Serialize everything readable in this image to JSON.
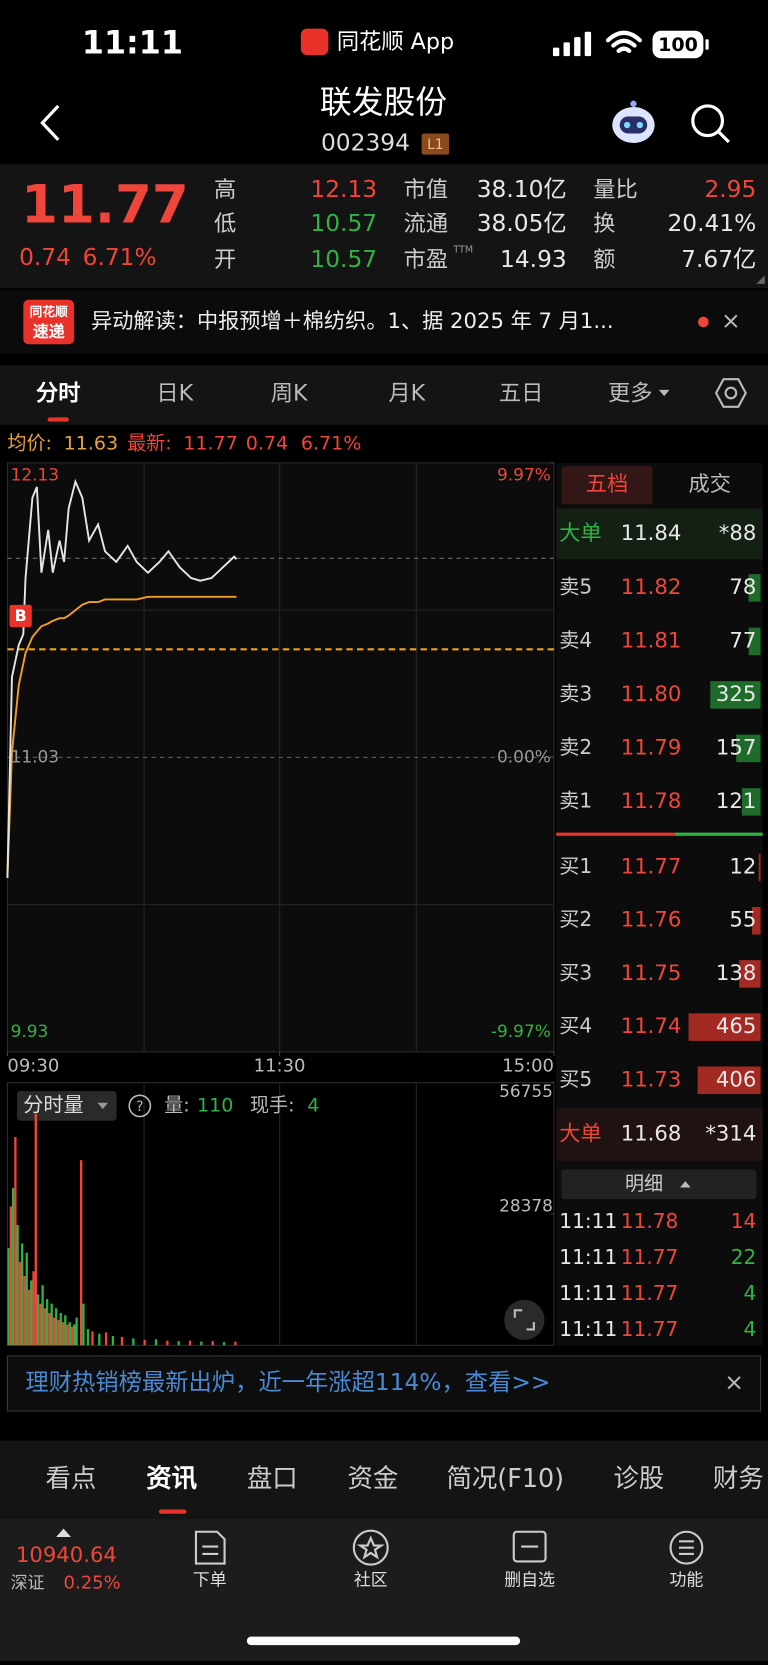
{
  "status_bar": {
    "time": "11:11",
    "app": "同花顺 App",
    "battery": "100"
  },
  "header": {
    "title": "联发股份",
    "code": "002394",
    "badge": "L1"
  },
  "quote": {
    "price": "11.77",
    "change": "0.74",
    "change_pct": "6.71%",
    "stats": [
      {
        "label": "高",
        "value": "12.13",
        "color": "#f0453a"
      },
      {
        "label": "低",
        "value": "10.57",
        "color": "#2fb344"
      },
      {
        "label": "开",
        "value": "10.57",
        "color": "#2fb344"
      },
      {
        "label": "市值",
        "value": "38.10亿",
        "color": "#e8e8e8"
      },
      {
        "label": "流通",
        "value": "38.05亿",
        "color": "#e8e8e8"
      },
      {
        "label": "市盈",
        "sup": "TTM",
        "value": "14.93",
        "color": "#e8e8e8"
      },
      {
        "label": "量比",
        "value": "2.95",
        "color": "#f0453a"
      },
      {
        "label": "换",
        "value": "20.41%",
        "color": "#e8e8e8"
      },
      {
        "label": "额",
        "value": "7.67亿",
        "color": "#e8e8e8"
      }
    ]
  },
  "news": {
    "logo_top": "同花顺",
    "logo_bottom": "速递",
    "text": "异动解读：中报预增＋棉纺织。1、据 2025 年 7 月1...",
    "close": "×"
  },
  "tabs": [
    "分时",
    "日K",
    "周K",
    "月K",
    "五日",
    "更多"
  ],
  "summary": {
    "avg_label": "均价:",
    "avg": "11.63",
    "last_label": "最新:",
    "last": "11.77",
    "change": "0.74",
    "change_pct": "6.71%"
  },
  "marker": "B",
  "chart_data": [
    {
      "type": "line",
      "x": [
        0,
        2,
        5,
        7,
        8,
        11,
        13,
        15,
        18,
        20,
        23,
        25,
        27,
        30,
        33,
        36,
        40,
        43,
        48,
        53,
        57,
        62,
        67,
        71,
        76,
        81,
        85,
        90,
        95,
        100,
        101
      ],
      "series": [
        {
          "color": "#e6e6e6",
          "values": [
            10.58,
            11.33,
            11.45,
            11.49,
            11.7,
            12.0,
            12.04,
            11.72,
            11.88,
            11.72,
            11.84,
            11.76,
            11.96,
            12.06,
            12.0,
            11.84,
            11.9,
            11.8,
            11.76,
            11.82,
            11.76,
            11.72,
            11.76,
            11.8,
            11.74,
            11.7,
            11.69,
            11.7,
            11.74,
            11.78,
            11.77
          ]
        },
        {
          "color": "#f0a020",
          "values": [
            10.58,
            11.05,
            11.3,
            11.38,
            11.42,
            11.48,
            11.5,
            11.52,
            11.53,
            11.54,
            11.55,
            11.55,
            11.56,
            11.58,
            11.6,
            11.61,
            11.61,
            11.62,
            11.62,
            11.62,
            11.62,
            11.63,
            11.63,
            11.63,
            11.63,
            11.63,
            11.63,
            11.63,
            11.63,
            11.63,
            11.63
          ]
        }
      ],
      "xlim": [
        0,
        241
      ],
      "xticks": [
        {
          "value": 0,
          "label": "09:30"
        },
        {
          "value": 120,
          "label": "11:30"
        },
        {
          "value": 241,
          "label": "15:00"
        }
      ],
      "ylim": [
        9.93,
        12.13
      ],
      "yticks": [
        12.13,
        11.03,
        9.93
      ],
      "y2lim": [
        -9.97,
        9.97
      ],
      "y2ticks": [
        {
          "value": 9.97,
          "label": "9.97%"
        },
        {
          "value": 0,
          "label": "0.00%"
        },
        {
          "value": -9.97,
          "label": "-9.97%"
        }
      ]
    },
    {
      "type": "bar",
      "x": [
        0,
        1,
        2,
        3,
        4,
        5,
        6,
        7,
        8,
        9,
        10,
        11,
        12,
        13,
        14,
        15,
        16,
        17,
        18,
        19,
        20,
        21,
        22,
        23,
        24,
        25,
        26,
        27,
        28,
        29,
        30,
        32,
        33,
        35,
        37,
        40,
        43,
        46,
        50,
        55,
        60,
        65,
        70,
        75,
        80,
        85,
        90,
        95,
        100
      ],
      "values": [
        21000,
        30000,
        34000,
        45000,
        26000,
        18000,
        22000,
        15000,
        20000,
        12000,
        14000,
        16000,
        50000,
        11000,
        9000,
        13000,
        8000,
        10000,
        7000,
        9000,
        6000,
        8000,
        5500,
        7000,
        5000,
        6500,
        4500,
        5000,
        4000,
        4500,
        6000,
        40000,
        9000,
        3500,
        3000,
        2500,
        2800,
        2000,
        1800,
        1500,
        1200,
        1300,
        1000,
        900,
        1000,
        800,
        900,
        700,
        800
      ],
      "colors": [
        "#2fb344",
        "#f0453a",
        "#2fb344",
        "#f0453a",
        "#2fb344",
        "#f0453a",
        "#2fb344",
        "#f0453a",
        "#2fb344",
        "#f0453a",
        "#2fb344",
        "#f0453a",
        "#f0453a",
        "#2fb344",
        "#f0453a",
        "#2fb344",
        "#f0453a",
        "#2fb344",
        "#f0453a",
        "#2fb344",
        "#f0453a",
        "#2fb344",
        "#f0453a",
        "#2fb344",
        "#f0453a",
        "#2fb344",
        "#f0453a",
        "#2fb344",
        "#f0453a",
        "#2fb344",
        "#2fb344",
        "#f0453a",
        "#2fb344",
        "#2fb344",
        "#f0453a",
        "#2fb344",
        "#f0453a",
        "#2fb344",
        "#f0453a",
        "#2fb344",
        "#f0453a",
        "#2fb344",
        "#f0453a",
        "#2fb344",
        "#f0453a",
        "#2fb344",
        "#f0453a",
        "#2fb344",
        "#f0453a"
      ],
      "xlim": [
        0,
        241
      ],
      "ylim": [
        0,
        56755
      ],
      "yticks": [
        56755,
        28378
      ]
    }
  ],
  "volume_panel": {
    "selector": "分时量",
    "help": "?",
    "vol_label": "量:",
    "vol": "110",
    "hand_label": "现手:",
    "hand": "4"
  },
  "order_book": {
    "tabs": [
      "五档",
      "成交"
    ],
    "big_top": {
      "label": "大单",
      "price": "11.84",
      "volume": "*88"
    },
    "asks": [
      {
        "label": "卖5",
        "price": "11.82",
        "volume": 78
      },
      {
        "label": "卖4",
        "price": "11.81",
        "volume": 77
      },
      {
        "label": "卖3",
        "price": "11.80",
        "volume": 325
      },
      {
        "label": "卖2",
        "price": "11.79",
        "volume": 157
      },
      {
        "label": "卖1",
        "price": "11.78",
        "volume": 121
      }
    ],
    "bids": [
      {
        "label": "买1",
        "price": "11.77",
        "volume": 12
      },
      {
        "label": "买2",
        "price": "11.76",
        "volume": 55
      },
      {
        "label": "买3",
        "price": "11.75",
        "volume": 138
      },
      {
        "label": "买4",
        "price": "11.74",
        "volume": 465
      },
      {
        "label": "买5",
        "price": "11.73",
        "volume": 406
      }
    ],
    "big_bottom": {
      "label": "大单",
      "price": "11.68",
      "volume": "*314"
    },
    "detail": "明细",
    "trades": [
      {
        "time": "11:11",
        "price": "11.78",
        "volume": "14",
        "color": "#f0453a"
      },
      {
        "time": "11:11",
        "price": "11.77",
        "volume": "22",
        "color": "#2fb344"
      },
      {
        "time": "11:11",
        "price": "11.77",
        "volume": "4",
        "color": "#2fb344"
      },
      {
        "time": "11:11",
        "price": "11.77",
        "volume": "4",
        "color": "#2fb344"
      }
    ]
  },
  "banner": {
    "text": "理财热销榜最新出炉，近一年涨超114%，查看>>",
    "close": "×"
  },
  "bottom_tabs": [
    "看点",
    "资讯",
    "盘口",
    "资金",
    "简况(F10)",
    "诊股",
    "财务"
  ],
  "nav": {
    "index_value": "10940.64",
    "index_name": "深证",
    "index_pct": "0.25%",
    "items": [
      "下单",
      "社区",
      "删自选",
      "功能"
    ]
  }
}
